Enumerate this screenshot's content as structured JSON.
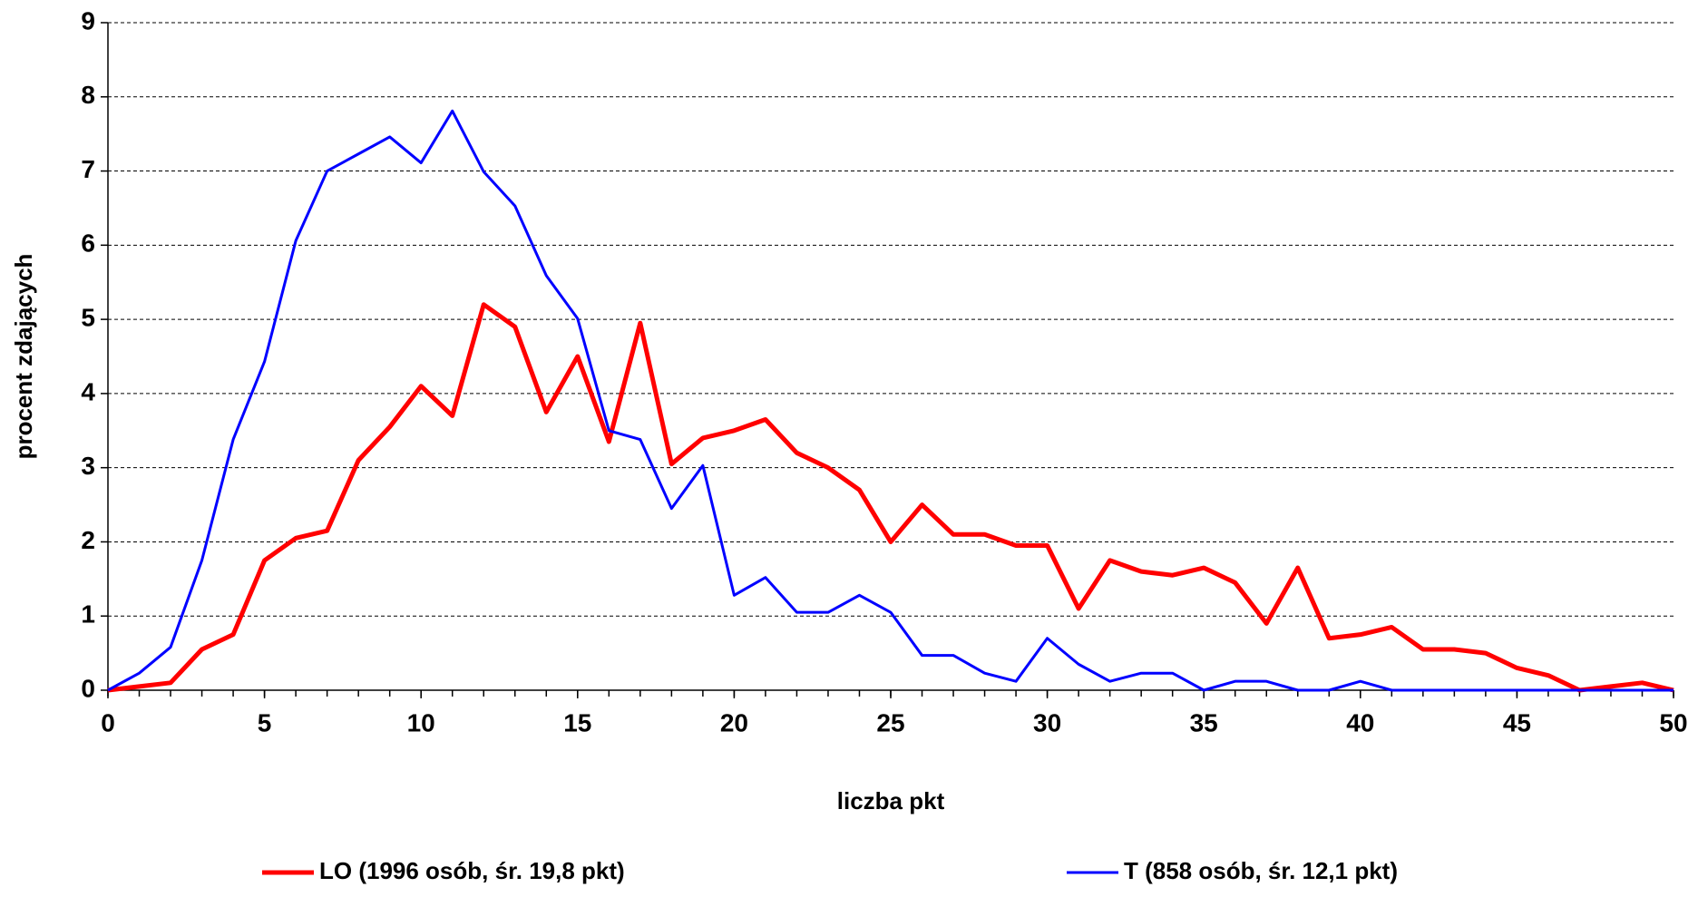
{
  "chart_data": {
    "type": "line",
    "xlabel": "liczba pkt",
    "ylabel": "procent zdających",
    "x": [
      0,
      1,
      2,
      3,
      4,
      5,
      6,
      7,
      8,
      9,
      10,
      11,
      12,
      13,
      14,
      15,
      16,
      17,
      18,
      19,
      20,
      21,
      22,
      23,
      24,
      25,
      26,
      27,
      28,
      29,
      30,
      31,
      32,
      33,
      34,
      35,
      36,
      37,
      38,
      39,
      40,
      41,
      42,
      43,
      44,
      45,
      46,
      47,
      48,
      49,
      50
    ],
    "series": [
      {
        "name": "LO (1996 osób, śr. 19,8 pkt)",
        "color": "#ff0000",
        "values": [
          0,
          0.05,
          0.1,
          0.55,
          0.75,
          1.75,
          2.05,
          2.15,
          3.1,
          3.55,
          4.1,
          3.7,
          5.2,
          4.9,
          3.75,
          4.5,
          3.35,
          4.95,
          3.05,
          3.4,
          3.5,
          3.65,
          3.2,
          3.0,
          2.7,
          2.0,
          2.5,
          2.1,
          2.1,
          1.95,
          1.95,
          1.1,
          1.75,
          1.6,
          1.55,
          1.65,
          1.45,
          0.9,
          1.65,
          0.7,
          0.75,
          0.85,
          0.55,
          0.55,
          0.5,
          0.3,
          0.2,
          0,
          0.05,
          0.1,
          0
        ]
      },
      {
        "name": "T (858 osób, śr. 12,1 pkt)",
        "color": "#0000ff",
        "values": [
          0,
          0.23,
          0.58,
          1.75,
          3.38,
          4.43,
          6.06,
          7.0,
          7.23,
          7.46,
          7.11,
          7.81,
          6.99,
          6.53,
          5.59,
          5.01,
          3.5,
          3.38,
          2.45,
          3.03,
          1.28,
          1.52,
          1.05,
          1.05,
          1.28,
          1.05,
          0.47,
          0.47,
          0.23,
          0.12,
          0.7,
          0.35,
          0.12,
          0.23,
          0.23,
          0,
          0.12,
          0.12,
          0,
          0,
          0.12,
          0,
          0,
          0,
          0,
          0,
          0,
          0,
          0,
          0,
          0
        ]
      }
    ],
    "xlim": [
      0,
      50
    ],
    "xticks": [
      0,
      5,
      10,
      15,
      20,
      25,
      30,
      35,
      40,
      45,
      50
    ],
    "ylim": [
      0,
      9
    ],
    "yticks": [
      0,
      1,
      2,
      3,
      4,
      5,
      6,
      7,
      8,
      9
    ],
    "grid": true,
    "legend": "bottom"
  }
}
